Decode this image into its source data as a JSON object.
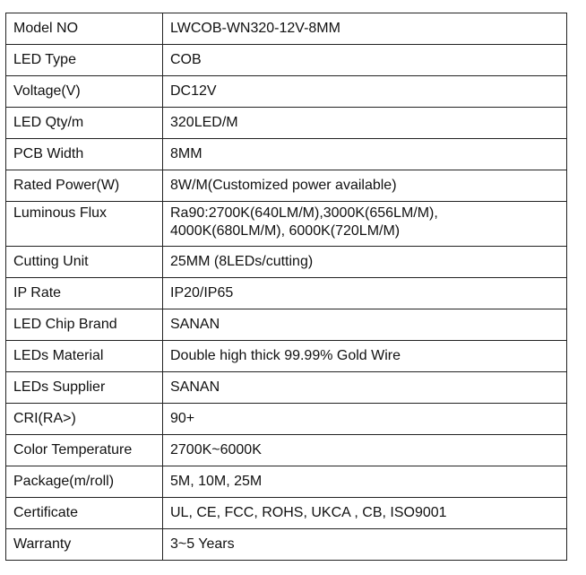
{
  "rows": [
    {
      "label": "Model NO",
      "value": "LWCOB-WN320-12V-8MM"
    },
    {
      "label": "LED Type",
      "value": "COB"
    },
    {
      "label": "Voltage(V)",
      "value": "DC12V"
    },
    {
      "label": "LED Qty/m",
      "value": "320LED/M"
    },
    {
      "label": "PCB Width",
      "value": "8MM"
    },
    {
      "label": "Rated Power(W)",
      "value": "8W/M(Customized power available)"
    },
    {
      "label": "Luminous Flux",
      "value": "Ra90:2700K(640LM/M),3000K(656LM/M),",
      "value2": "4000K(680LM/M), 6000K(720LM/M)"
    },
    {
      "label": "Cutting Unit",
      "value": "25MM (8LEDs/cutting)"
    },
    {
      "label": "IP Rate",
      "value": "IP20/IP65"
    },
    {
      "label": "LED Chip Brand",
      "value": "SANAN"
    },
    {
      "label": "LEDs Material",
      "value": "Double high thick 99.99% Gold Wire"
    },
    {
      "label": "LEDs Supplier",
      "value": "SANAN"
    },
    {
      "label": "CRI(RA>)",
      "value": "90+"
    },
    {
      "label": "Color Temperature",
      "value": "2700K~6000K"
    },
    {
      "label": "Package(m/roll)",
      "value": "5M, 10M, 25M"
    },
    {
      "label": "Certificate",
      "value": "UL, CE, FCC, ROHS, UKCA , CB, ISO9001"
    },
    {
      "label": "Warranty",
      "value": "3~5 Years"
    }
  ]
}
